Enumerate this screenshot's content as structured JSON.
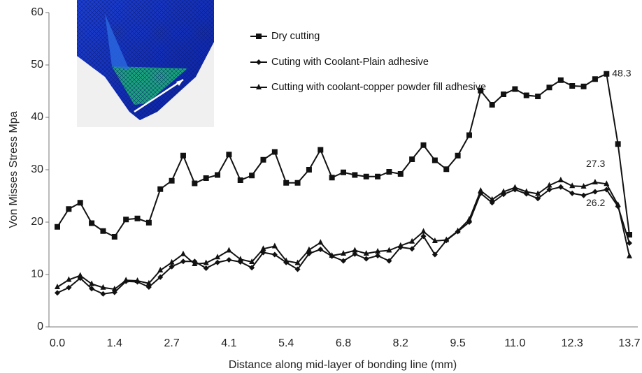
{
  "chart_data": {
    "type": "line",
    "x_label": "Distance along mid-layer of bonding line (mm)",
    "y_label": "Von Misses Stress Mpa",
    "categories": [
      "0.0",
      null,
      null,
      null,
      null,
      "1.4",
      null,
      null,
      null,
      null,
      "2.7",
      null,
      null,
      null,
      null,
      "4.1",
      null,
      null,
      null,
      null,
      "5.4",
      null,
      null,
      null,
      null,
      "6.8",
      null,
      null,
      null,
      null,
      "8.2",
      null,
      null,
      null,
      null,
      "9.5",
      null,
      null,
      null,
      null,
      "11.0",
      null,
      null,
      null,
      null,
      "12.3",
      null,
      null,
      null,
      null,
      "13.7"
    ],
    "ylim": [
      0,
      60
    ],
    "yticks": [
      0,
      10,
      20,
      30,
      40,
      50,
      60
    ],
    "grid": false,
    "series": [
      {
        "name": "Dry cutting",
        "color": "#111111",
        "marker": "square",
        "values": [
          19.1,
          22.5,
          23.7,
          19.8,
          18.3,
          17.2,
          20.5,
          20.7,
          19.9,
          26.3,
          27.9,
          32.7,
          27.4,
          28.4,
          29.0,
          32.9,
          28.0,
          28.9,
          31.9,
          33.4,
          27.5,
          27.5,
          30.0,
          33.8,
          28.5,
          29.5,
          29.0,
          28.7,
          28.7,
          29.6,
          29.2,
          32.0,
          34.7,
          31.8,
          30.1,
          32.7,
          36.6,
          45.1,
          42.4,
          44.4,
          45.4,
          44.2,
          44.0,
          45.7,
          47.1,
          46.0,
          45.9,
          47.3,
          48.3,
          34.9,
          17.6
        ],
        "value_labels": [
          null,
          null,
          null,
          null,
          null,
          null,
          null,
          null,
          null,
          null,
          null,
          null,
          null,
          null,
          null,
          null,
          null,
          null,
          null,
          null,
          null,
          null,
          null,
          null,
          null,
          null,
          null,
          null,
          null,
          null,
          null,
          null,
          null,
          null,
          null,
          null,
          null,
          null,
          null,
          null,
          null,
          null,
          null,
          null,
          null,
          null,
          null,
          null,
          "48.3",
          null,
          null
        ]
      },
      {
        "name": "Cuting with Coolant-Plain adhesive",
        "color": "#111111",
        "marker": "diamond",
        "values": [
          6.5,
          7.5,
          9.3,
          7.3,
          6.3,
          6.6,
          8.7,
          8.6,
          7.6,
          9.5,
          11.5,
          12.5,
          12.5,
          11.2,
          12.3,
          12.8,
          12.4,
          11.3,
          14.2,
          13.8,
          12.3,
          11.0,
          14.0,
          14.8,
          13.5,
          12.6,
          13.9,
          13.0,
          13.6,
          12.6,
          15.2,
          14.9,
          17.3,
          13.8,
          16.5,
          18.2,
          20.0,
          25.5,
          23.7,
          25.3,
          26.2,
          25.4,
          24.5,
          26.2,
          26.7,
          25.5,
          25.1,
          25.8,
          26.2,
          23.0,
          16.0
        ],
        "value_labels": [
          null,
          null,
          null,
          null,
          null,
          null,
          null,
          null,
          null,
          null,
          null,
          null,
          null,
          null,
          null,
          null,
          null,
          null,
          null,
          null,
          null,
          null,
          null,
          null,
          null,
          null,
          null,
          null,
          null,
          null,
          null,
          null,
          null,
          null,
          null,
          null,
          null,
          null,
          null,
          null,
          null,
          null,
          null,
          null,
          null,
          null,
          null,
          null,
          "26.2",
          null,
          null
        ]
      },
      {
        "name": "Cutting with coolant-copper powder fill adhesive",
        "color": "#111111",
        "marker": "triangle",
        "values": [
          7.6,
          9.0,
          9.8,
          8.2,
          7.5,
          7.2,
          8.9,
          8.8,
          8.3,
          10.8,
          12.3,
          13.9,
          12.0,
          12.2,
          13.3,
          14.6,
          12.9,
          12.4,
          14.9,
          15.4,
          12.6,
          12.2,
          14.7,
          16.1,
          13.6,
          14.0,
          14.6,
          14.0,
          14.4,
          14.6,
          15.5,
          16.3,
          18.2,
          16.4,
          16.6,
          18.3,
          20.5,
          26.0,
          24.3,
          25.8,
          26.6,
          25.8,
          25.4,
          27.0,
          28.0,
          26.9,
          26.8,
          27.6,
          27.3,
          23.3,
          13.5
        ],
        "value_labels": [
          null,
          null,
          null,
          null,
          null,
          null,
          null,
          null,
          null,
          null,
          null,
          null,
          null,
          null,
          null,
          null,
          null,
          null,
          null,
          null,
          null,
          null,
          null,
          null,
          null,
          null,
          null,
          null,
          null,
          null,
          null,
          null,
          null,
          null,
          null,
          null,
          null,
          null,
          null,
          null,
          null,
          null,
          null,
          null,
          null,
          null,
          null,
          null,
          "27.3",
          null,
          null
        ]
      }
    ]
  }
}
